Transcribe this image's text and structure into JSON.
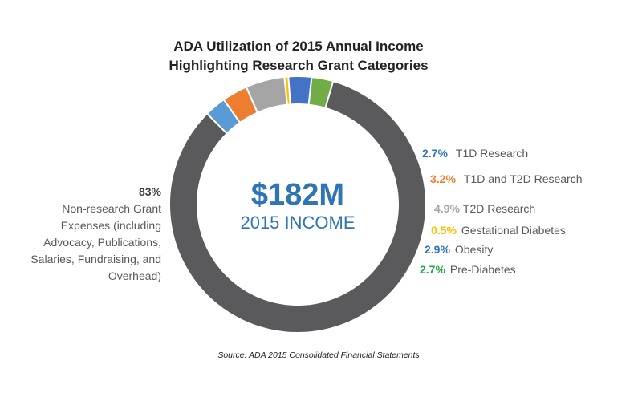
{
  "chart_data": {
    "type": "pie",
    "variant": "donut",
    "title_lines": [
      "ADA Utilization of 2015 Annual Income",
      "Highlighting Research Grant Categories"
    ],
    "center_value": "$182M",
    "center_label": "2015 INCOME",
    "slices": [
      {
        "name": "Non-research Grant Expenses",
        "value": 83.0,
        "pct_text": "83%",
        "color": "#5a5a5c"
      },
      {
        "name": "T1D Research",
        "value": 2.7,
        "pct_text": "2.7%",
        "color": "#5b9bd5"
      },
      {
        "name": "T1D and T2D Research",
        "value": 3.2,
        "pct_text": "3.2%",
        "color": "#ed7d31"
      },
      {
        "name": "T2D Research",
        "value": 4.9,
        "pct_text": "4.9%",
        "color": "#a5a5a5"
      },
      {
        "name": "Gestational Diabetes",
        "value": 0.5,
        "pct_text": "0.5%",
        "color": "#ffc000"
      },
      {
        "name": "Obesity",
        "value": 2.9,
        "pct_text": "2.9%",
        "color": "#4472c4"
      },
      {
        "name": "Pre-Diabetes",
        "value": 2.7,
        "pct_text": "2.7%",
        "color": "#70ad47"
      }
    ],
    "label_colors": {
      "T1D Research": "#2e75b6",
      "T1D and T2D Research": "#ed7d31",
      "T2D Research": "#a5a5a5",
      "Gestational Diabetes": "#ffc000",
      "Obesity": "#2e75b6",
      "Pre-Diabetes": "#22a84a",
      "center": "#2e75b6"
    },
    "right_labels": [
      {
        "pct": "2.7%",
        "text": "T1D Research"
      },
      {
        "pct": "3.2%",
        "text": "T1D and T2D Research"
      },
      {
        "pct": "4.9%",
        "text": "T2D Research"
      },
      {
        "pct": "0.5%",
        "text": "Gestational Diabetes"
      },
      {
        "pct": "2.9%",
        "text": "Obesity"
      },
      {
        "pct": "2.7%",
        "text": "Pre-Diabetes"
      }
    ],
    "left_label": {
      "pct": "83%",
      "lines": [
        "Non-research Grant",
        "Expenses (including",
        "Advocacy, Publications,",
        "Salaries, Fundraising, and",
        "Overhead)"
      ]
    },
    "source": "Source:  ADA 2015 Consolidated  Financial Statements"
  }
}
